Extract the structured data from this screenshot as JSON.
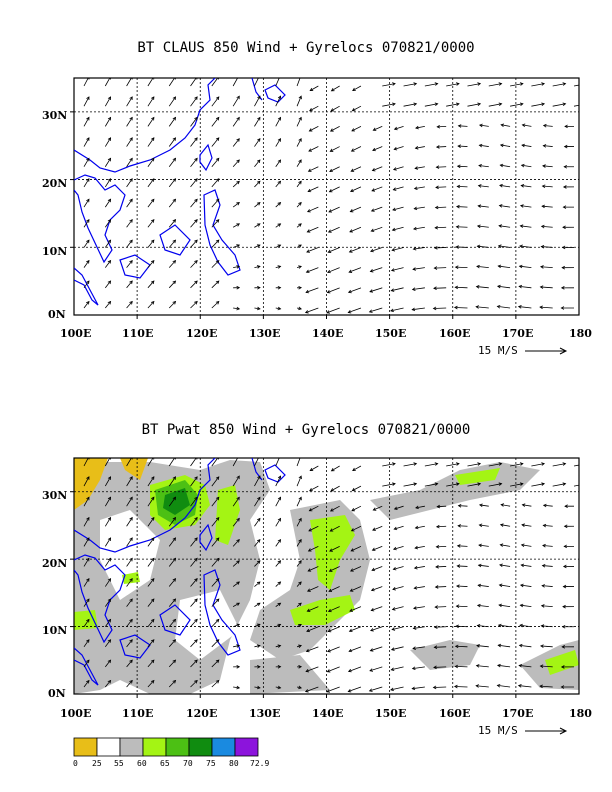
{
  "panel1": {
    "title": "BT CLAUS 850 Wind + Gyrelocs 070821/0000",
    "lat_labels": [
      "30N",
      "20N",
      "10N",
      "0N"
    ],
    "lon_labels": [
      "100E",
      "110E",
      "120E",
      "130E",
      "140E",
      "150E",
      "160E",
      "170E",
      "180"
    ],
    "scale_label": "15 M/S"
  },
  "panel2": {
    "title": "BT Pwat 850 Wind + Gyrelocs 070821/0000",
    "lat_labels": [
      "30N",
      "20N",
      "10N",
      "0N"
    ],
    "lon_labels": [
      "100E",
      "110E",
      "120E",
      "130E",
      "140E",
      "150E",
      "160E",
      "170E",
      "180"
    ],
    "scale_label": "15 M/S"
  },
  "map_extent": {
    "lon": [
      100,
      180
    ],
    "lat": [
      0,
      35
    ]
  },
  "legend": {
    "labels": [
      "0",
      "25",
      "55",
      "60",
      "65",
      "70",
      "75",
      "80",
      "72.9"
    ],
    "colors": [
      "#e8be18",
      "#ffffff",
      "#bcbcbc",
      "#a4f414",
      "#4cc014",
      "#108c10",
      "#1a8ae0",
      "#8c14dc"
    ]
  },
  "colors": {
    "coast": "#0000ee",
    "grid": "#000000",
    "arrow": "#000000"
  }
}
